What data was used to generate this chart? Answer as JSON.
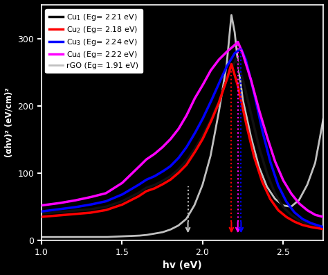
{
  "xlabel": "hv (eV)",
  "ylabel": "(αhv)² (eV/cm)²",
  "xlim": [
    1.0,
    2.75
  ],
  "ylim": [
    0,
    350
  ],
  "yticks": [
    0,
    100,
    200,
    300
  ],
  "xticks": [
    1.0,
    1.5,
    2.0,
    2.5
  ],
  "background_color": "#000000",
  "text_color": "#ffffff",
  "cu1_color": "#111111",
  "cu2_color": "#ff0000",
  "cu3_color": "#0000ff",
  "cu4_color": "#ff00ff",
  "rgo_color": "#c0c0c0",
  "legend_labels": [
    "Cu$_1$ (Eg= 2.21 eV)",
    "Cu$_2$ (Eg= 2.18 eV)",
    "Cu$_3$ (Eg= 2.24 eV)",
    "Cu$_4$ (Eg= 2.22 eV)",
    "rGO (Eg= 1.91 eV)"
  ]
}
